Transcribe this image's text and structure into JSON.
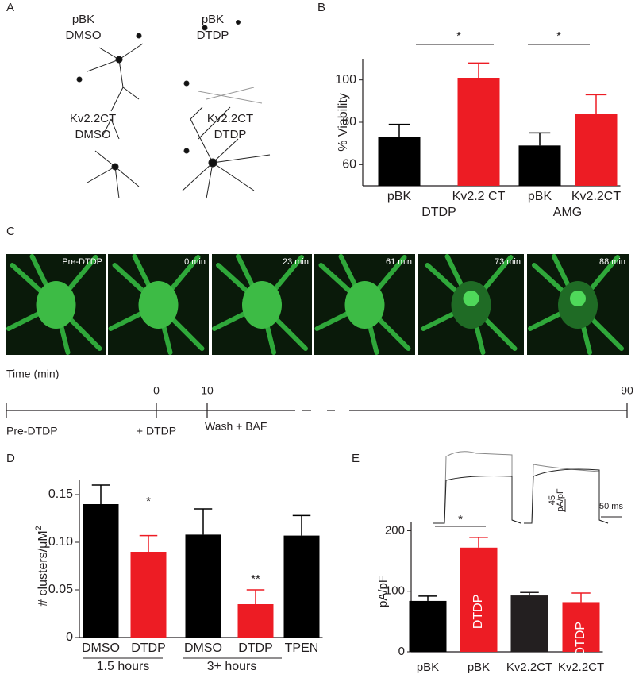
{
  "panels": [
    "A",
    "B",
    "C",
    "D",
    "E"
  ],
  "panel_a": {
    "images": [
      [
        "pBK",
        "DMSO"
      ],
      [
        "pBK",
        "DTDP"
      ],
      [
        "Kv2.2CT",
        "DMSO"
      ],
      [
        "Kv2.2CT",
        "DTDP"
      ]
    ]
  },
  "panel_c": {
    "frames": [
      "Pre-DTDP",
      "0 min",
      "23 min",
      "61 min",
      "73 min",
      "88 min"
    ],
    "timeline": {
      "title": "Time (min)",
      "ticks": [
        0,
        10,
        90
      ],
      "phases": [
        "Pre-DTDP",
        "+ DTDP",
        "Wash + BAF"
      ]
    }
  },
  "chart_data": [
    {
      "type": "bar",
      "ylabel": "% Viability",
      "categories": [
        "pBK",
        "Kv2.2 CT",
        "pBK",
        "Kv2.2CT"
      ],
      "groups": [
        "DTDP",
        "AMG"
      ],
      "values": [
        73,
        101,
        69,
        84
      ],
      "errors": [
        6,
        7,
        6,
        9
      ],
      "colors": [
        "#000000",
        "#ed1c24",
        "#000000",
        "#ed1c24"
      ],
      "ylim": [
        50,
        110
      ],
      "yticks": [
        60,
        80,
        100
      ],
      "annotations": [
        "*",
        "*"
      ]
    },
    {
      "type": "bar",
      "ylabel": "# clusters/μM",
      "ylabel_superscript": "2",
      "categories": [
        "DMSO",
        "DTDP",
        "DMSO",
        "DTDP",
        "TPEN"
      ],
      "groups": [
        "1.5 hours",
        "3+ hours"
      ],
      "values": [
        0.14,
        0.09,
        0.108,
        0.035,
        0.107
      ],
      "errors": [
        0.02,
        0.017,
        0.027,
        0.015,
        0.021
      ],
      "colors": [
        "#000000",
        "#ed1c24",
        "#000000",
        "#ed1c24",
        "#000000"
      ],
      "ylim": [
        0,
        0.165
      ],
      "yticks": [
        0,
        0.05,
        {
          "value": 0.1,
          "label": "0.10"
        },
        0.15
      ],
      "annotations": [
        "*",
        "**"
      ]
    },
    {
      "type": "bar",
      "ylabel": "pA/pF",
      "categories": [
        "pBK",
        "pBK",
        "Kv2.2CT",
        "Kv2.2CT"
      ],
      "values": [
        84,
        172,
        93,
        82
      ],
      "errors": [
        8,
        17,
        5,
        15
      ],
      "colors": [
        "#000000",
        "#ed1c24",
        "#231f20",
        "#ed1c24"
      ],
      "bar_labels": [
        null,
        "DTDP",
        null,
        "DTDP"
      ],
      "ylim": [
        0,
        215
      ],
      "yticks": [
        0,
        100,
        200
      ],
      "annotations": [
        "*"
      ],
      "scale_bar": {
        "amplitude": "45",
        "unit": "pA/pF",
        "time": "50 ms"
      }
    }
  ]
}
